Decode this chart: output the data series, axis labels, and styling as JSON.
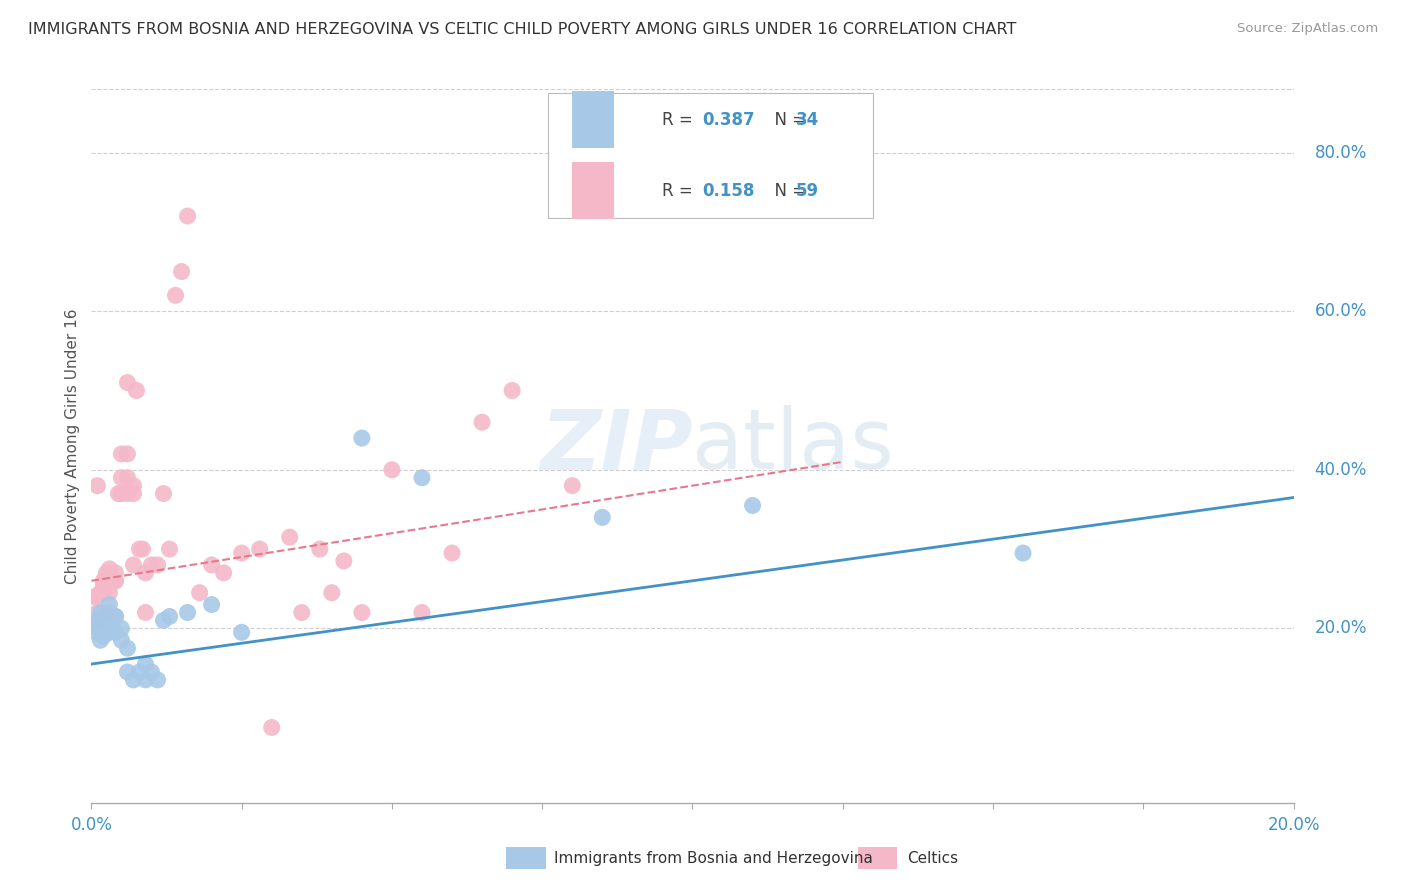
{
  "title": "IMMIGRANTS FROM BOSNIA AND HERZEGOVINA VS CELTIC CHILD POVERTY AMONG GIRLS UNDER 16 CORRELATION CHART",
  "source": "Source: ZipAtlas.com",
  "ylabel": "Child Poverty Among Girls Under 16",
  "legend_r1": "0.387",
  "legend_n1": "34",
  "legend_r2": "0.158",
  "legend_n2": "59",
  "blue_color": "#a8c8e8",
  "pink_color": "#f4b8c8",
  "text_blue": "#4292c6",
  "text_pink": "#e8788a",
  "label1": "Immigrants from Bosnia and Herzegovina",
  "label2": "Celtics",
  "blue_scatter_x": [
    0.0008,
    0.001,
    0.0012,
    0.0015,
    0.0015,
    0.002,
    0.002,
    0.0025,
    0.003,
    0.003,
    0.003,
    0.004,
    0.004,
    0.004,
    0.005,
    0.005,
    0.006,
    0.006,
    0.007,
    0.008,
    0.009,
    0.009,
    0.01,
    0.011,
    0.012,
    0.013,
    0.016,
    0.02,
    0.025,
    0.045,
    0.055,
    0.085,
    0.11,
    0.155
  ],
  "blue_scatter_y": [
    0.195,
    0.21,
    0.2,
    0.185,
    0.22,
    0.19,
    0.215,
    0.215,
    0.2,
    0.195,
    0.23,
    0.215,
    0.195,
    0.215,
    0.2,
    0.185,
    0.145,
    0.175,
    0.135,
    0.145,
    0.155,
    0.135,
    0.145,
    0.135,
    0.21,
    0.215,
    0.22,
    0.23,
    0.195,
    0.44,
    0.39,
    0.34,
    0.355,
    0.295
  ],
  "pink_scatter_x": [
    0.0005,
    0.001,
    0.001,
    0.001,
    0.001,
    0.0015,
    0.002,
    0.002,
    0.002,
    0.002,
    0.0025,
    0.003,
    0.003,
    0.003,
    0.003,
    0.004,
    0.004,
    0.004,
    0.0045,
    0.005,
    0.005,
    0.005,
    0.006,
    0.006,
    0.006,
    0.006,
    0.007,
    0.007,
    0.007,
    0.0075,
    0.008,
    0.0085,
    0.009,
    0.009,
    0.01,
    0.011,
    0.012,
    0.013,
    0.014,
    0.015,
    0.016,
    0.018,
    0.02,
    0.022,
    0.025,
    0.028,
    0.03,
    0.033,
    0.035,
    0.038,
    0.04,
    0.042,
    0.045,
    0.05,
    0.055,
    0.06,
    0.065,
    0.07,
    0.08
  ],
  "pink_scatter_y": [
    0.24,
    0.22,
    0.21,
    0.24,
    0.38,
    0.245,
    0.245,
    0.245,
    0.26,
    0.255,
    0.27,
    0.22,
    0.245,
    0.26,
    0.275,
    0.27,
    0.26,
    0.26,
    0.37,
    0.37,
    0.39,
    0.42,
    0.51,
    0.37,
    0.39,
    0.42,
    0.28,
    0.37,
    0.38,
    0.5,
    0.3,
    0.3,
    0.22,
    0.27,
    0.28,
    0.28,
    0.37,
    0.3,
    0.62,
    0.65,
    0.72,
    0.245,
    0.28,
    0.27,
    0.295,
    0.3,
    0.075,
    0.315,
    0.22,
    0.3,
    0.245,
    0.285,
    0.22,
    0.4,
    0.22,
    0.295,
    0.46,
    0.5,
    0.38
  ],
  "xlim": [
    0,
    0.2
  ],
  "ylim": [
    -0.02,
    0.88
  ],
  "blue_line_x": [
    0.0,
    0.2
  ],
  "blue_line_y": [
    0.155,
    0.365
  ],
  "pink_line_x": [
    0.0,
    0.125
  ],
  "pink_line_y": [
    0.26,
    0.41
  ],
  "watermark": "ZIPatlas",
  "background_color": "#ffffff",
  "grid_color": "#d0d0d0"
}
